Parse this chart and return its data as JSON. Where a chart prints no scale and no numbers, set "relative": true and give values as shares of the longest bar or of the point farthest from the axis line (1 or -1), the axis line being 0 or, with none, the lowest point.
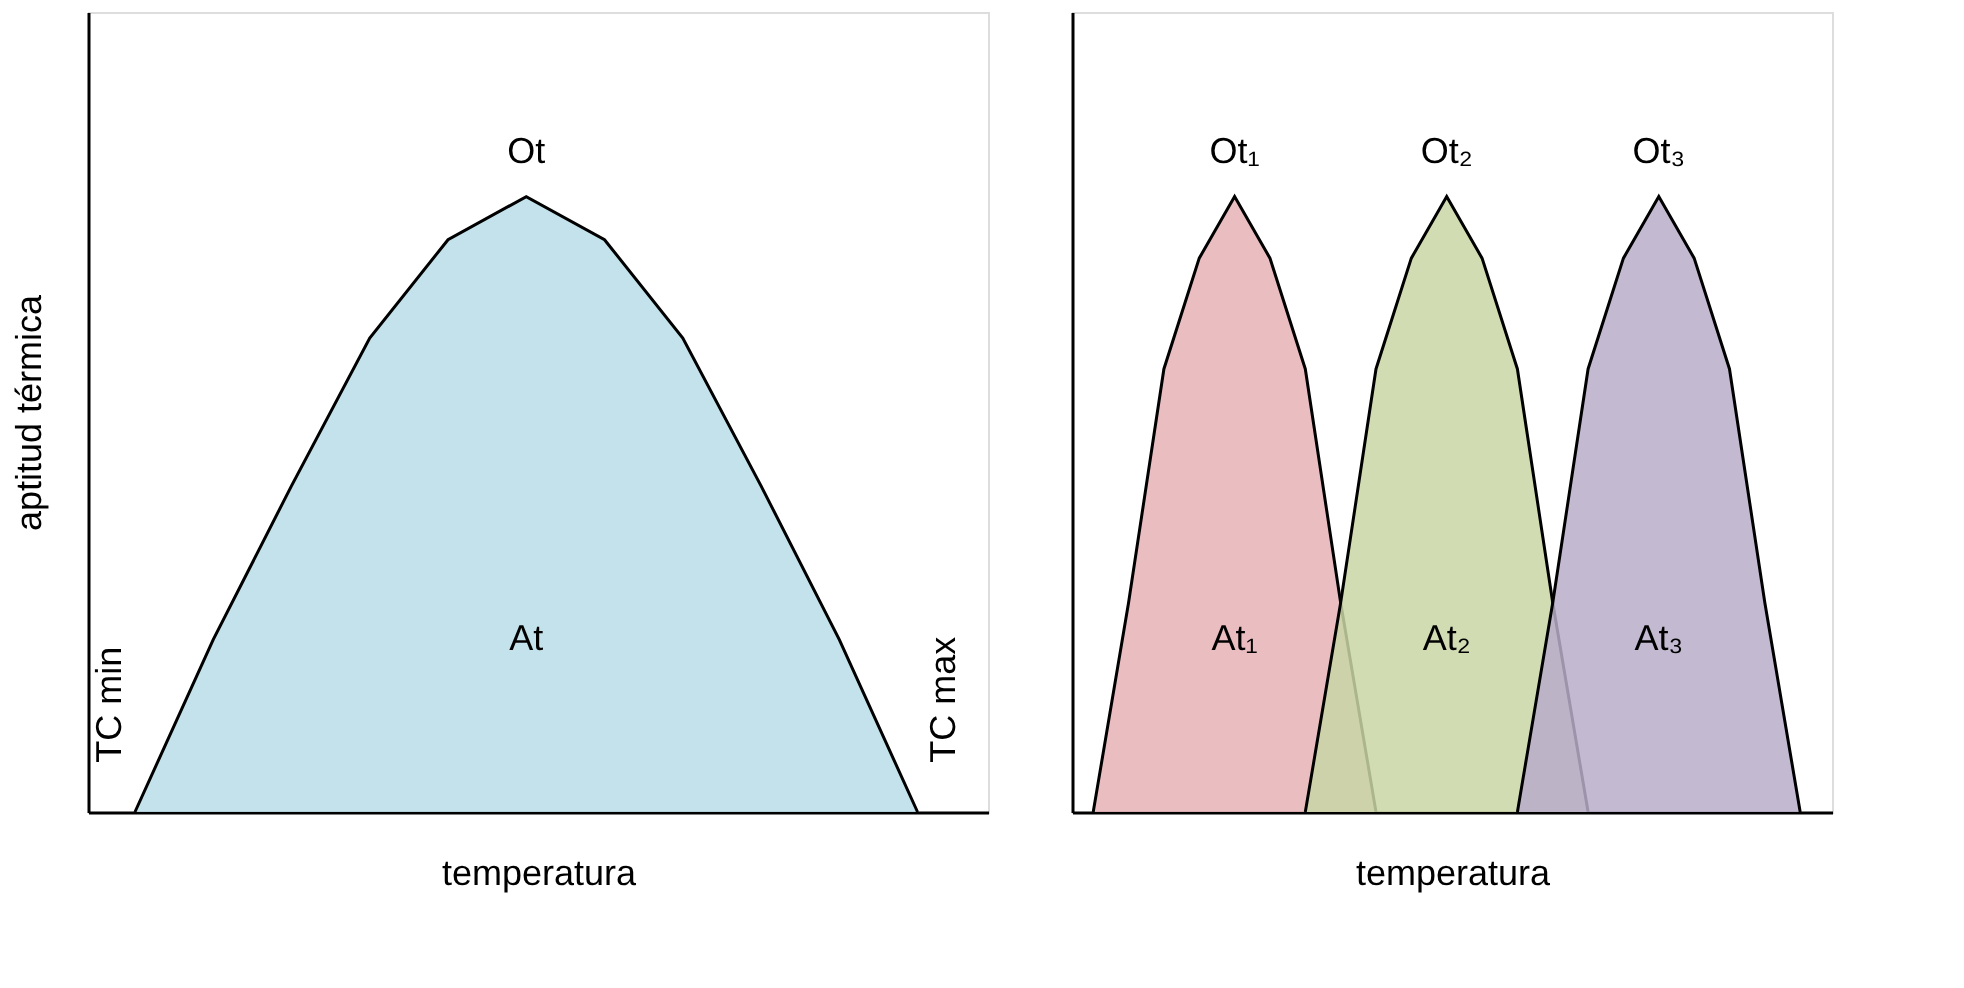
{
  "chart_data": [
    {
      "type": "area",
      "relative": true,
      "tick_labels": false,
      "xlabel": "temperatura",
      "ylabel": "aptitud térmica",
      "categories": [
        null,
        null,
        null,
        null,
        null,
        null,
        null,
        null,
        null,
        null,
        null
      ],
      "series": [
        {
          "name": "Ot",
          "color": "#b8dde7",
          "values": [
            0,
            0.28,
            0.53,
            0.77,
            0.93,
            1,
            0.93,
            0.77,
            0.53,
            0.28,
            0
          ]
        }
      ],
      "annotations": [
        "At",
        "TC min",
        "TC max"
      ]
    },
    {
      "type": "area",
      "relative": true,
      "tick_labels": false,
      "xlabel": "temperatura",
      "categories": [
        null,
        null,
        null,
        null,
        null,
        null,
        null,
        null,
        null,
        null,
        null,
        null,
        null,
        null,
        null,
        null,
        null,
        null,
        null,
        null,
        null
      ],
      "series": [
        {
          "name": "Ot₁",
          "color": "#e6b3b5",
          "values": [
            0,
            0.34,
            0.72,
            0.9,
            1,
            0.9,
            0.72,
            0.34,
            0,
            null,
            null,
            null,
            null,
            null,
            null,
            null,
            null,
            null,
            null,
            null,
            null
          ]
        },
        {
          "name": "Ot₂",
          "color": "#c9d6a6",
          "values": [
            null,
            null,
            null,
            null,
            null,
            null,
            0,
            0.34,
            0.72,
            0.9,
            1,
            0.9,
            0.72,
            0.34,
            0,
            null,
            null,
            null,
            null,
            null,
            null
          ]
        },
        {
          "name": "Ot₃",
          "color": "#b8adc9",
          "values": [
            null,
            null,
            null,
            null,
            null,
            null,
            null,
            null,
            null,
            null,
            null,
            null,
            0,
            0.34,
            0.72,
            0.9,
            1,
            0.9,
            0.72,
            0.34,
            0
          ]
        }
      ],
      "annotations": [
        "At₁",
        "At₂",
        "At₃"
      ]
    }
  ]
}
